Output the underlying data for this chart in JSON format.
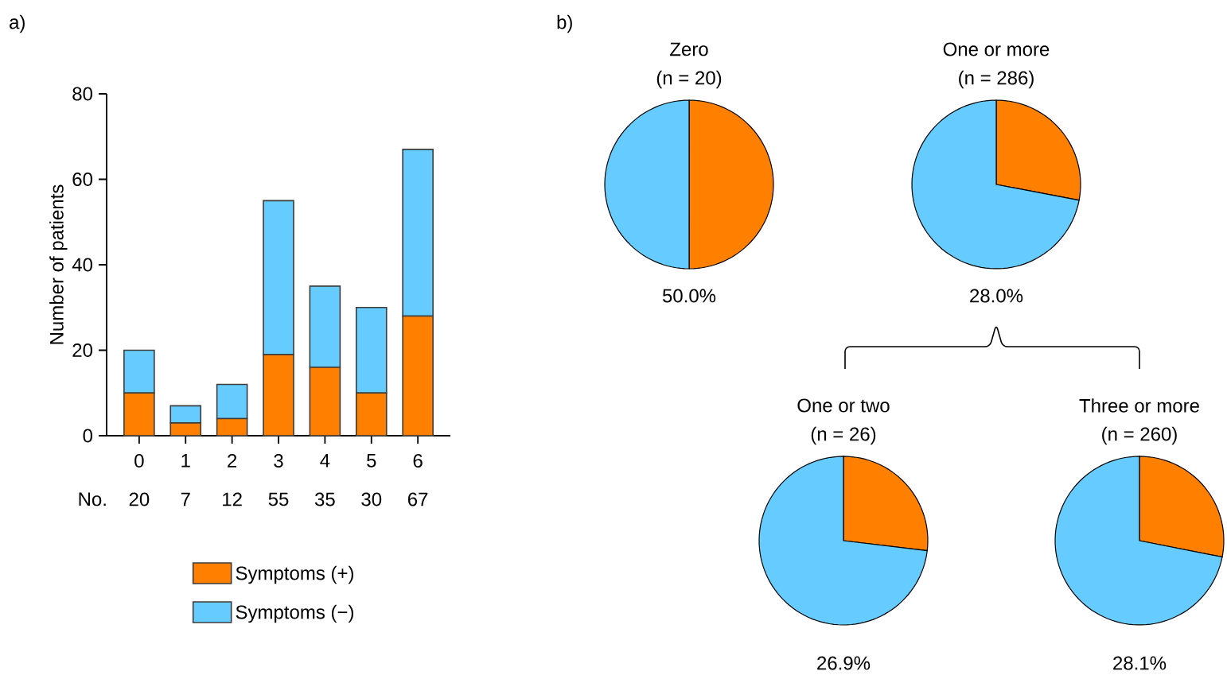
{
  "chart_data": [
    {
      "type": "bar",
      "ylabel": "Number of patients",
      "categories": [
        "0",
        "1",
        "2",
        "3",
        "4",
        "5",
        "6"
      ],
      "stacked": true,
      "ylim": [
        0,
        80
      ],
      "yticks": [
        0,
        20,
        40,
        60,
        80
      ],
      "legend": "bottom",
      "series": [
        {
          "name": "Symptoms (+)",
          "color": "#ff8000",
          "values": [
            10,
            3,
            4,
            19,
            16,
            10,
            28
          ]
        },
        {
          "name": "Symptoms (−)",
          "color": "#66ccff",
          "values": [
            10,
            4,
            8,
            36,
            19,
            20,
            39
          ]
        }
      ],
      "totals": [
        "20",
        "7",
        "12",
        "55",
        "35",
        "30",
        "67"
      ],
      "annotations": [
        "a)",
        "No."
      ]
    },
    {
      "type": "pie",
      "title": "Zero",
      "subtitle": "(n = 20)",
      "categories": [
        null,
        null
      ],
      "values": [
        50.0,
        50.0
      ],
      "colors": [
        "#ff8000",
        "#66ccff"
      ],
      "annotations": [
        "b)",
        "50.0%"
      ]
    },
    {
      "type": "pie",
      "title": "One or more",
      "subtitle": "(n = 286)",
      "categories": [
        null,
        null
      ],
      "values": [
        28.0,
        72.0
      ],
      "colors": [
        "#ff8000",
        "#66ccff"
      ],
      "annotations": [
        "28.0%"
      ]
    },
    {
      "type": "pie",
      "title": "One or two",
      "subtitle": "(n = 26)",
      "categories": [
        null,
        null
      ],
      "values": [
        26.9,
        73.1
      ],
      "colors": [
        "#ff8000",
        "#66ccff"
      ],
      "annotations": [
        "26.9%"
      ]
    },
    {
      "type": "pie",
      "title": "Three or more",
      "subtitle": "(n = 260)",
      "categories": [
        null,
        null
      ],
      "values": [
        28.1,
        71.9
      ],
      "colors": [
        "#ff8000",
        "#66ccff"
      ],
      "annotations": [
        "28.1%"
      ]
    }
  ]
}
